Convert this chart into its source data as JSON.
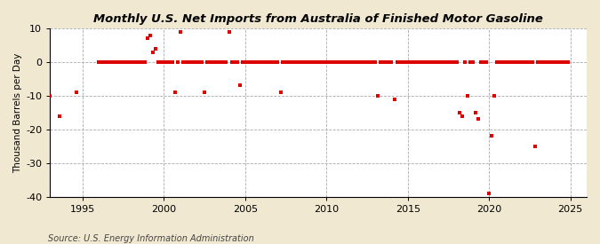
{
  "title": "Monthly U.S. Net Imports from Australia of Finished Motor Gasoline",
  "ylabel": "Thousand Barrels per Day",
  "source": "Source: U.S. Energy Information Administration",
  "xlim": [
    1993.0,
    2026.0
  ],
  "ylim": [
    -40,
    10
  ],
  "yticks": [
    -40,
    -30,
    -20,
    -10,
    0,
    10
  ],
  "xticks": [
    1995,
    2000,
    2005,
    2010,
    2015,
    2020,
    2025
  ],
  "outer_bg": "#f0e8d0",
  "plot_bg": "#ffffff",
  "marker_color": "#dd0000",
  "marker_size": 5,
  "title_fontsize": 9.5,
  "tick_fontsize": 8,
  "ylabel_fontsize": 7.5,
  "source_fontsize": 7,
  "data_points": [
    [
      1993.0,
      -10.0
    ],
    [
      1993.6,
      -16.0
    ],
    [
      1994.6,
      -9.0
    ],
    [
      1996.0,
      0.0
    ],
    [
      1996.17,
      0.0
    ],
    [
      1996.33,
      0.0
    ],
    [
      1996.5,
      0.0
    ],
    [
      1996.67,
      0.0
    ],
    [
      1996.83,
      0.0
    ],
    [
      1997.0,
      0.0
    ],
    [
      1997.17,
      0.0
    ],
    [
      1997.33,
      0.0
    ],
    [
      1997.5,
      0.0
    ],
    [
      1997.67,
      0.0
    ],
    [
      1997.83,
      0.0
    ],
    [
      1998.0,
      0.0
    ],
    [
      1998.17,
      0.0
    ],
    [
      1998.33,
      0.0
    ],
    [
      1998.5,
      0.0
    ],
    [
      1998.67,
      0.0
    ],
    [
      1998.83,
      0.0
    ],
    [
      1999.0,
      7.0
    ],
    [
      1999.17,
      8.0
    ],
    [
      1999.33,
      3.0
    ],
    [
      1999.5,
      4.0
    ],
    [
      1999.67,
      0.0
    ],
    [
      1999.83,
      0.0
    ],
    [
      2000.0,
      0.0
    ],
    [
      2000.17,
      0.0
    ],
    [
      2000.33,
      0.0
    ],
    [
      2000.5,
      0.0
    ],
    [
      2000.67,
      -9.0
    ],
    [
      2000.83,
      0.0
    ],
    [
      2001.0,
      9.0
    ],
    [
      2001.17,
      0.0
    ],
    [
      2001.33,
      0.0
    ],
    [
      2001.5,
      0.0
    ],
    [
      2001.67,
      0.0
    ],
    [
      2001.83,
      0.0
    ],
    [
      2002.0,
      0.0
    ],
    [
      2002.17,
      0.0
    ],
    [
      2002.33,
      0.0
    ],
    [
      2002.5,
      -9.0
    ],
    [
      2002.67,
      0.0
    ],
    [
      2002.83,
      0.0
    ],
    [
      2003.0,
      0.0
    ],
    [
      2003.17,
      0.0
    ],
    [
      2003.33,
      0.0
    ],
    [
      2003.5,
      0.0
    ],
    [
      2003.67,
      0.0
    ],
    [
      2003.83,
      0.0
    ],
    [
      2004.0,
      9.0
    ],
    [
      2004.17,
      0.0
    ],
    [
      2004.33,
      0.0
    ],
    [
      2004.5,
      0.0
    ],
    [
      2004.67,
      -7.0
    ],
    [
      2004.83,
      0.0
    ],
    [
      2005.0,
      0.0
    ],
    [
      2005.17,
      0.0
    ],
    [
      2005.33,
      0.0
    ],
    [
      2005.5,
      0.0
    ],
    [
      2005.67,
      0.0
    ],
    [
      2005.83,
      0.0
    ],
    [
      2006.0,
      0.0
    ],
    [
      2006.17,
      0.0
    ],
    [
      2006.33,
      0.0
    ],
    [
      2006.5,
      0.0
    ],
    [
      2006.67,
      0.0
    ],
    [
      2006.83,
      0.0
    ],
    [
      2007.0,
      0.0
    ],
    [
      2007.17,
      -9.0
    ],
    [
      2007.33,
      0.0
    ],
    [
      2007.5,
      0.0
    ],
    [
      2007.67,
      0.0
    ],
    [
      2007.83,
      0.0
    ],
    [
      2008.0,
      0.0
    ],
    [
      2008.17,
      0.0
    ],
    [
      2008.33,
      0.0
    ],
    [
      2008.5,
      0.0
    ],
    [
      2008.67,
      0.0
    ],
    [
      2008.83,
      0.0
    ],
    [
      2009.0,
      0.0
    ],
    [
      2009.17,
      0.0
    ],
    [
      2009.33,
      0.0
    ],
    [
      2009.5,
      0.0
    ],
    [
      2009.67,
      0.0
    ],
    [
      2009.83,
      0.0
    ],
    [
      2010.0,
      0.0
    ],
    [
      2010.17,
      0.0
    ],
    [
      2010.33,
      0.0
    ],
    [
      2010.5,
      0.0
    ],
    [
      2010.67,
      0.0
    ],
    [
      2010.83,
      0.0
    ],
    [
      2011.0,
      0.0
    ],
    [
      2011.17,
      0.0
    ],
    [
      2011.33,
      0.0
    ],
    [
      2011.5,
      0.0
    ],
    [
      2011.67,
      0.0
    ],
    [
      2011.83,
      0.0
    ],
    [
      2012.0,
      0.0
    ],
    [
      2012.17,
      0.0
    ],
    [
      2012.33,
      0.0
    ],
    [
      2012.5,
      0.0
    ],
    [
      2012.67,
      0.0
    ],
    [
      2012.83,
      0.0
    ],
    [
      2013.0,
      0.0
    ],
    [
      2013.17,
      -10.0
    ],
    [
      2013.33,
      0.0
    ],
    [
      2013.5,
      0.0
    ],
    [
      2013.67,
      0.0
    ],
    [
      2013.83,
      0.0
    ],
    [
      2014.0,
      0.0
    ],
    [
      2014.17,
      -11.0
    ],
    [
      2014.33,
      0.0
    ],
    [
      2014.5,
      0.0
    ],
    [
      2014.67,
      0.0
    ],
    [
      2014.83,
      0.0
    ],
    [
      2015.0,
      0.0
    ],
    [
      2015.17,
      0.0
    ],
    [
      2015.33,
      0.0
    ],
    [
      2015.5,
      0.0
    ],
    [
      2015.67,
      0.0
    ],
    [
      2015.83,
      0.0
    ],
    [
      2016.0,
      0.0
    ],
    [
      2016.17,
      0.0
    ],
    [
      2016.33,
      0.0
    ],
    [
      2016.5,
      0.0
    ],
    [
      2016.67,
      0.0
    ],
    [
      2016.83,
      0.0
    ],
    [
      2017.0,
      0.0
    ],
    [
      2017.17,
      0.0
    ],
    [
      2017.33,
      0.0
    ],
    [
      2017.5,
      0.0
    ],
    [
      2017.67,
      0.0
    ],
    [
      2017.83,
      0.0
    ],
    [
      2018.0,
      0.0
    ],
    [
      2018.17,
      -15.0
    ],
    [
      2018.33,
      -16.0
    ],
    [
      2018.5,
      0.0
    ],
    [
      2018.67,
      -10.0
    ],
    [
      2018.83,
      0.0
    ],
    [
      2019.0,
      0.0
    ],
    [
      2019.17,
      -15.0
    ],
    [
      2019.33,
      -17.0
    ],
    [
      2019.5,
      0.0
    ],
    [
      2019.67,
      0.0
    ],
    [
      2019.83,
      0.0
    ],
    [
      2020.0,
      -39.0
    ],
    [
      2020.17,
      -22.0
    ],
    [
      2020.33,
      -10.0
    ],
    [
      2020.5,
      0.0
    ],
    [
      2020.67,
      0.0
    ],
    [
      2020.83,
      0.0
    ],
    [
      2021.0,
      0.0
    ],
    [
      2021.17,
      0.0
    ],
    [
      2021.33,
      0.0
    ],
    [
      2021.5,
      0.0
    ],
    [
      2021.67,
      0.0
    ],
    [
      2021.83,
      0.0
    ],
    [
      2022.0,
      0.0
    ],
    [
      2022.17,
      0.0
    ],
    [
      2022.33,
      0.0
    ],
    [
      2022.5,
      0.0
    ],
    [
      2022.67,
      0.0
    ],
    [
      2022.83,
      -25.0
    ],
    [
      2023.0,
      0.0
    ],
    [
      2023.17,
      0.0
    ],
    [
      2023.33,
      0.0
    ],
    [
      2023.5,
      0.0
    ],
    [
      2023.67,
      0.0
    ],
    [
      2023.83,
      0.0
    ],
    [
      2024.0,
      0.0
    ],
    [
      2024.17,
      0.0
    ],
    [
      2024.33,
      0.0
    ],
    [
      2024.5,
      0.0
    ],
    [
      2024.67,
      0.0
    ],
    [
      2024.83,
      0.0
    ]
  ]
}
